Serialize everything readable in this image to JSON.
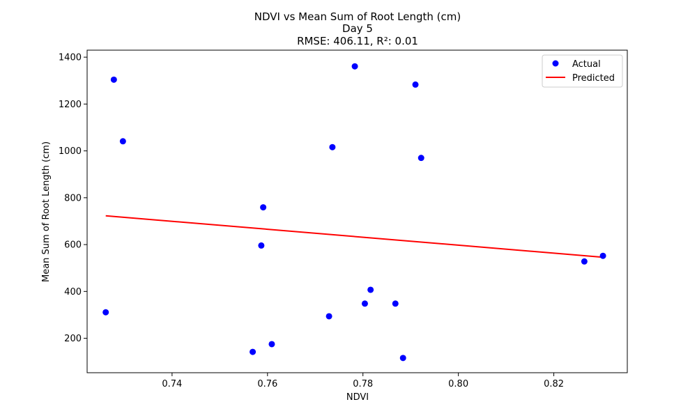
{
  "chart_data": {
    "type": "scatter",
    "title_lines": [
      "NDVI vs Mean Sum of Root Length (cm)",
      "Day 5",
      "RMSE: 406.11, R²: 0.01"
    ],
    "xlabel": "NDVI",
    "ylabel": "Mean Sum of Root Length (cm)",
    "xlim": [
      0.7222,
      0.8354
    ],
    "ylim": [
      53,
      1430
    ],
    "x_ticks": [
      0.74,
      0.76,
      0.78,
      0.8,
      0.82
    ],
    "x_tick_labels": [
      "0.74",
      "0.76",
      "0.78",
      "0.80",
      "0.82"
    ],
    "y_ticks": [
      200,
      400,
      600,
      800,
      1000,
      1200,
      1400
    ],
    "y_tick_labels": [
      "200",
      "400",
      "600",
      "800",
      "1000",
      "1200",
      "1400"
    ],
    "grid": false,
    "legend_position": "top-right",
    "series": [
      {
        "name": "Actual",
        "kind": "scatter",
        "color": "#0000ff",
        "points": [
          {
            "x": 0.7261,
            "y": 311
          },
          {
            "x": 0.7278,
            "y": 1304
          },
          {
            "x": 0.7297,
            "y": 1041
          },
          {
            "x": 0.7569,
            "y": 142
          },
          {
            "x": 0.7587,
            "y": 596
          },
          {
            "x": 0.7591,
            "y": 759
          },
          {
            "x": 0.7609,
            "y": 175
          },
          {
            "x": 0.7729,
            "y": 294
          },
          {
            "x": 0.7736,
            "y": 1016
          },
          {
            "x": 0.7783,
            "y": 1361
          },
          {
            "x": 0.7804,
            "y": 348
          },
          {
            "x": 0.7816,
            "y": 407
          },
          {
            "x": 0.7868,
            "y": 348
          },
          {
            "x": 0.7884,
            "y": 116
          },
          {
            "x": 0.791,
            "y": 1283
          },
          {
            "x": 0.7922,
            "y": 970
          },
          {
            "x": 0.8264,
            "y": 528
          },
          {
            "x": 0.8303,
            "y": 552
          }
        ]
      },
      {
        "name": "Predicted",
        "kind": "line",
        "color": "#ff0000",
        "points": [
          {
            "x": 0.7261,
            "y": 723
          },
          {
            "x": 0.8303,
            "y": 546
          }
        ]
      }
    ]
  }
}
